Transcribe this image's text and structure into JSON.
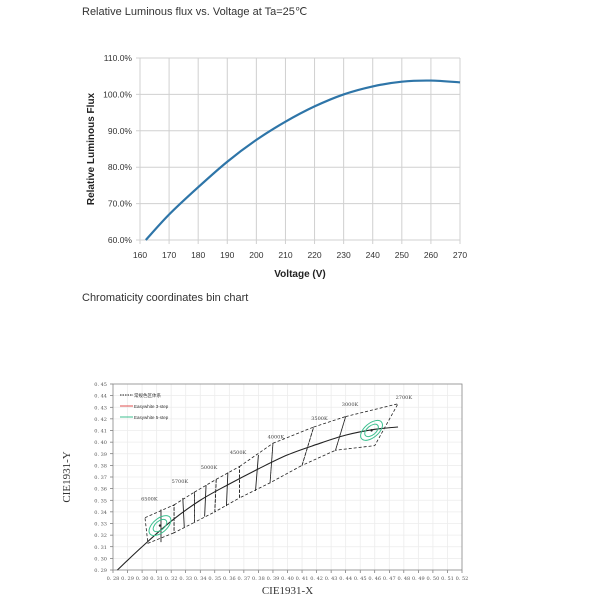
{
  "chart_data": [
    {
      "type": "line",
      "title": "Relative Luminous flux vs. Voltage at Ta=25℃",
      "xlabel": "Voltage (V)",
      "ylabel": "Relative Luminous Flux",
      "x_ticks": [
        "160",
        "170",
        "180",
        "190",
        "200",
        "210",
        "220",
        "230",
        "240",
        "250",
        "260",
        "270"
      ],
      "y_ticks": [
        "60.0%",
        "70.0%",
        "80.0%",
        "90.0%",
        "100.0%",
        "110.0%"
      ],
      "xlim": [
        160,
        270
      ],
      "ylim": [
        60,
        110
      ],
      "grid": true,
      "series": [
        {
          "name": "Relative Luminous Flux",
          "color": "#2e75a8",
          "x": [
            162,
            170,
            180,
            190,
            200,
            210,
            220,
            230,
            240,
            250,
            260,
            270
          ],
          "y": [
            60.0,
            67.0,
            74.5,
            81.5,
            87.5,
            92.5,
            96.7,
            100.0,
            102.2,
            103.5,
            103.8,
            103.3
          ]
        }
      ]
    },
    {
      "type": "scatter",
      "title": "Chromaticity coordinates bin chart",
      "xlabel": "CIE1931-X",
      "ylabel": "CIE1931-Y",
      "x_ticks": [
        "0.28",
        "0.29",
        "0.30",
        "0.31",
        "0.32",
        "0.33",
        "0.34",
        "0.35",
        "0.36",
        "0.37",
        "0.38",
        "0.39",
        "0.40",
        "0.41",
        "0.42",
        "0.43",
        "0.44",
        "0.45",
        "0.46",
        "0.47",
        "0.48",
        "0.49",
        "0.50",
        "0.51",
        "0.52"
      ],
      "y_ticks": [
        "0.29",
        "0.30",
        "0.31",
        "0.32",
        "0.33",
        "0.34",
        "0.35",
        "0.36",
        "0.37",
        "0.38",
        "0.39",
        "0.40",
        "0.41",
        "0.42",
        "0.43",
        "0.44",
        "0.45"
      ],
      "xlim": [
        0.28,
        0.52
      ],
      "ylim": [
        0.29,
        0.45
      ],
      "grid": true,
      "legend": {
        "position": "upper-left",
        "entries": [
          {
            "label": "常规色区体系",
            "color": "#222222"
          },
          {
            "label": "Easywhite 3-step",
            "color": "#e05050"
          },
          {
            "label": "Easywhite 5-step",
            "color": "#3cbf8f"
          }
        ]
      },
      "cct_labels": [
        {
          "label": "6500K",
          "x": 0.305,
          "y": 0.35
        },
        {
          "label": "5700K",
          "x": 0.326,
          "y": 0.365
        },
        {
          "label": "5000K",
          "x": 0.346,
          "y": 0.377
        },
        {
          "label": "4500K",
          "x": 0.366,
          "y": 0.39
        },
        {
          "label": "4000K",
          "x": 0.392,
          "y": 0.403
        },
        {
          "label": "3500K",
          "x": 0.422,
          "y": 0.419
        },
        {
          "label": "3000K",
          "x": 0.443,
          "y": 0.431
        },
        {
          "label": "2700K",
          "x": 0.48,
          "y": 0.437
        }
      ],
      "planckian_locus": {
        "x": [
          0.283,
          0.3,
          0.32,
          0.34,
          0.36,
          0.38,
          0.4,
          0.42,
          0.44,
          0.46,
          0.476
        ],
        "y": [
          0.29,
          0.31,
          0.332,
          0.35,
          0.364,
          0.377,
          0.389,
          0.398,
          0.406,
          0.411,
          0.413
        ]
      },
      "ellipses": [
        {
          "center": [
            0.3123,
            0.3282
          ],
          "color": "#3cbf8f"
        },
        {
          "center": [
            0.4578,
            0.4101
          ],
          "color": "#3cbf8f"
        }
      ]
    }
  ],
  "text": {
    "chart1_title": "Relative Luminous flux vs. Voltage at Ta=25℃",
    "chart2_title": "Chromaticity coordinates bin chart"
  }
}
